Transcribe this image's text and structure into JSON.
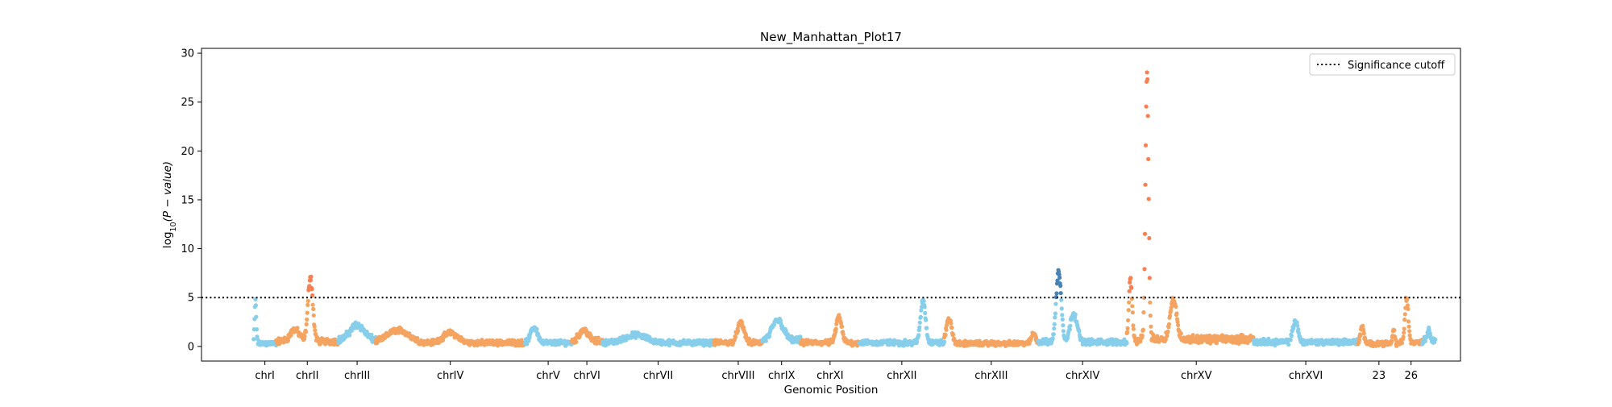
{
  "chart_data": {
    "type": "scatter",
    "title": "New_Manhattan_Plot17",
    "xlabel": "Genomic Position",
    "ylabel_parts": {
      "pre": "log",
      "sub": "10",
      "post": "(P − value)"
    },
    "ylim": [
      -1.5,
      30.5
    ],
    "yticks": [
      0,
      5,
      10,
      15,
      20,
      25,
      30
    ],
    "grid": false,
    "legend": {
      "placement": "top-right",
      "entries": [
        {
          "label": "Significance cutoff",
          "style": "dotted-line",
          "color": "#000000"
        }
      ]
    },
    "threshold": 5,
    "colors": {
      "light_blue": "#87ceeb",
      "orange": "#f4a460",
      "significant_orange": "#fa7f50",
      "significant_blue": "#4682b4"
    },
    "chromosomes": [
      {
        "label": "chrI",
        "start": 0,
        "end": 24,
        "color": "#87ceeb",
        "base": 0.4,
        "peaks": [
          {
            "at": 0.08,
            "h": 4.3,
            "w": 0.08
          }
        ]
      },
      {
        "label": "chrII",
        "start": 24,
        "end": 91,
        "color": "#f4a460",
        "base": 0.7,
        "peaks": [
          {
            "at": 0.55,
            "h": 6.6,
            "w": 0.08
          },
          {
            "at": 0.3,
            "h": 1.2,
            "w": 0.15
          }
        ]
      },
      {
        "label": "chrIII",
        "start": 91,
        "end": 131,
        "color": "#87ceeb",
        "base": 0.8,
        "peaks": [
          {
            "at": 0.5,
            "h": 1.6,
            "w": 0.4
          }
        ]
      },
      {
        "label": "chrIV",
        "start": 131,
        "end": 291,
        "color": "#f4a460",
        "base": 0.5,
        "peaks": [
          {
            "at": 0.15,
            "h": 1.3,
            "w": 0.15
          },
          {
            "at": 0.5,
            "h": 1.0,
            "w": 0.1
          }
        ]
      },
      {
        "label": "chrV",
        "start": 291,
        "end": 341,
        "color": "#87ceeb",
        "base": 0.5,
        "peaks": [
          {
            "at": 0.2,
            "h": 1.6,
            "w": 0.15
          }
        ]
      },
      {
        "label": "chrVI",
        "start": 341,
        "end": 374,
        "color": "#f4a460",
        "base": 0.7,
        "peaks": [
          {
            "at": 0.4,
            "h": 1.2,
            "w": 0.3
          }
        ]
      },
      {
        "label": "chrVII",
        "start": 374,
        "end": 494,
        "color": "#87ceeb",
        "base": 0.5,
        "peaks": [
          {
            "at": 0.3,
            "h": 0.8,
            "w": 0.2
          }
        ]
      },
      {
        "label": "chrVIII",
        "start": 494,
        "end": 546,
        "color": "#f4a460",
        "base": 0.5,
        "peaks": [
          {
            "at": 0.55,
            "h": 2.0,
            "w": 0.15
          }
        ]
      },
      {
        "label": "chrIX",
        "start": 546,
        "end": 587,
        "color": "#87ceeb",
        "base": 0.8,
        "peaks": [
          {
            "at": 0.4,
            "h": 2.1,
            "w": 0.3
          }
        ]
      },
      {
        "label": "chrXI",
        "start": 587,
        "end": 650,
        "color": "#f4a460",
        "base": 0.5,
        "peaks": [
          {
            "at": 0.65,
            "h": 2.6,
            "w": 0.1
          }
        ]
      },
      {
        "label": "chrXII",
        "start": 650,
        "end": 741,
        "color": "#87ceeb",
        "base": 0.5,
        "peaks": [
          {
            "at": 0.75,
            "h": 4.4,
            "w": 0.06
          }
        ]
      },
      {
        "label": "chrXIII",
        "start": 741,
        "end": 842,
        "color": "#f4a460",
        "base": 0.4,
        "peaks": [
          {
            "at": 0.05,
            "h": 2.5,
            "w": 0.06
          },
          {
            "at": 0.95,
            "h": 1.0,
            "w": 0.05
          }
        ]
      },
      {
        "label": "chrXIV",
        "start": 842,
        "end": 937,
        "color": "#87ceeb",
        "base": 0.6,
        "peaks": [
          {
            "at": 0.23,
            "h": 7.2,
            "w": 0.06
          },
          {
            "at": 0.4,
            "h": 3.0,
            "w": 0.08
          }
        ]
      },
      {
        "label": "",
        "start": 937,
        "end": 950,
        "color": "#f4a460",
        "base": 0.6,
        "peaks": [
          {
            "at": 0.3,
            "h": 6.3,
            "w": 0.3
          }
        ]
      },
      {
        "label": "chrXV",
        "start": 950,
        "end": 1073,
        "color": "#f4a460",
        "base": 1.0,
        "peaks": [
          {
            "at": 0.07,
            "h": 27.5,
            "w": 0.028
          },
          {
            "at": 0.3,
            "h": 4.0,
            "w": 0.06
          }
        ]
      },
      {
        "label": "chrXVI",
        "start": 1073,
        "end": 1185,
        "color": "#87ceeb",
        "base": 0.6,
        "peaks": [
          {
            "at": 0.4,
            "h": 2.2,
            "w": 0.05
          }
        ]
      },
      {
        "label": "23",
        "start": 1185,
        "end": 1230,
        "color": "#f4a460",
        "base": 0.4,
        "peaks": [
          {
            "at": 0.1,
            "h": 1.8,
            "w": 0.08
          },
          {
            "at": 0.85,
            "h": 1.5,
            "w": 0.05
          }
        ]
      },
      {
        "label": "26",
        "start": 1230,
        "end": 1254,
        "color": "#f4a460",
        "base": 0.6,
        "peaks": [
          {
            "at": 0.3,
            "h": 4.6,
            "w": 0.15
          }
        ]
      },
      {
        "label": "",
        "start": 1254,
        "end": 1268,
        "color": "#87ceeb",
        "base": 0.8,
        "peaks": [
          {
            "at": 0.5,
            "h": 1.0,
            "w": 0.3
          }
        ]
      }
    ],
    "xlim": [
      -56,
      1295
    ]
  }
}
